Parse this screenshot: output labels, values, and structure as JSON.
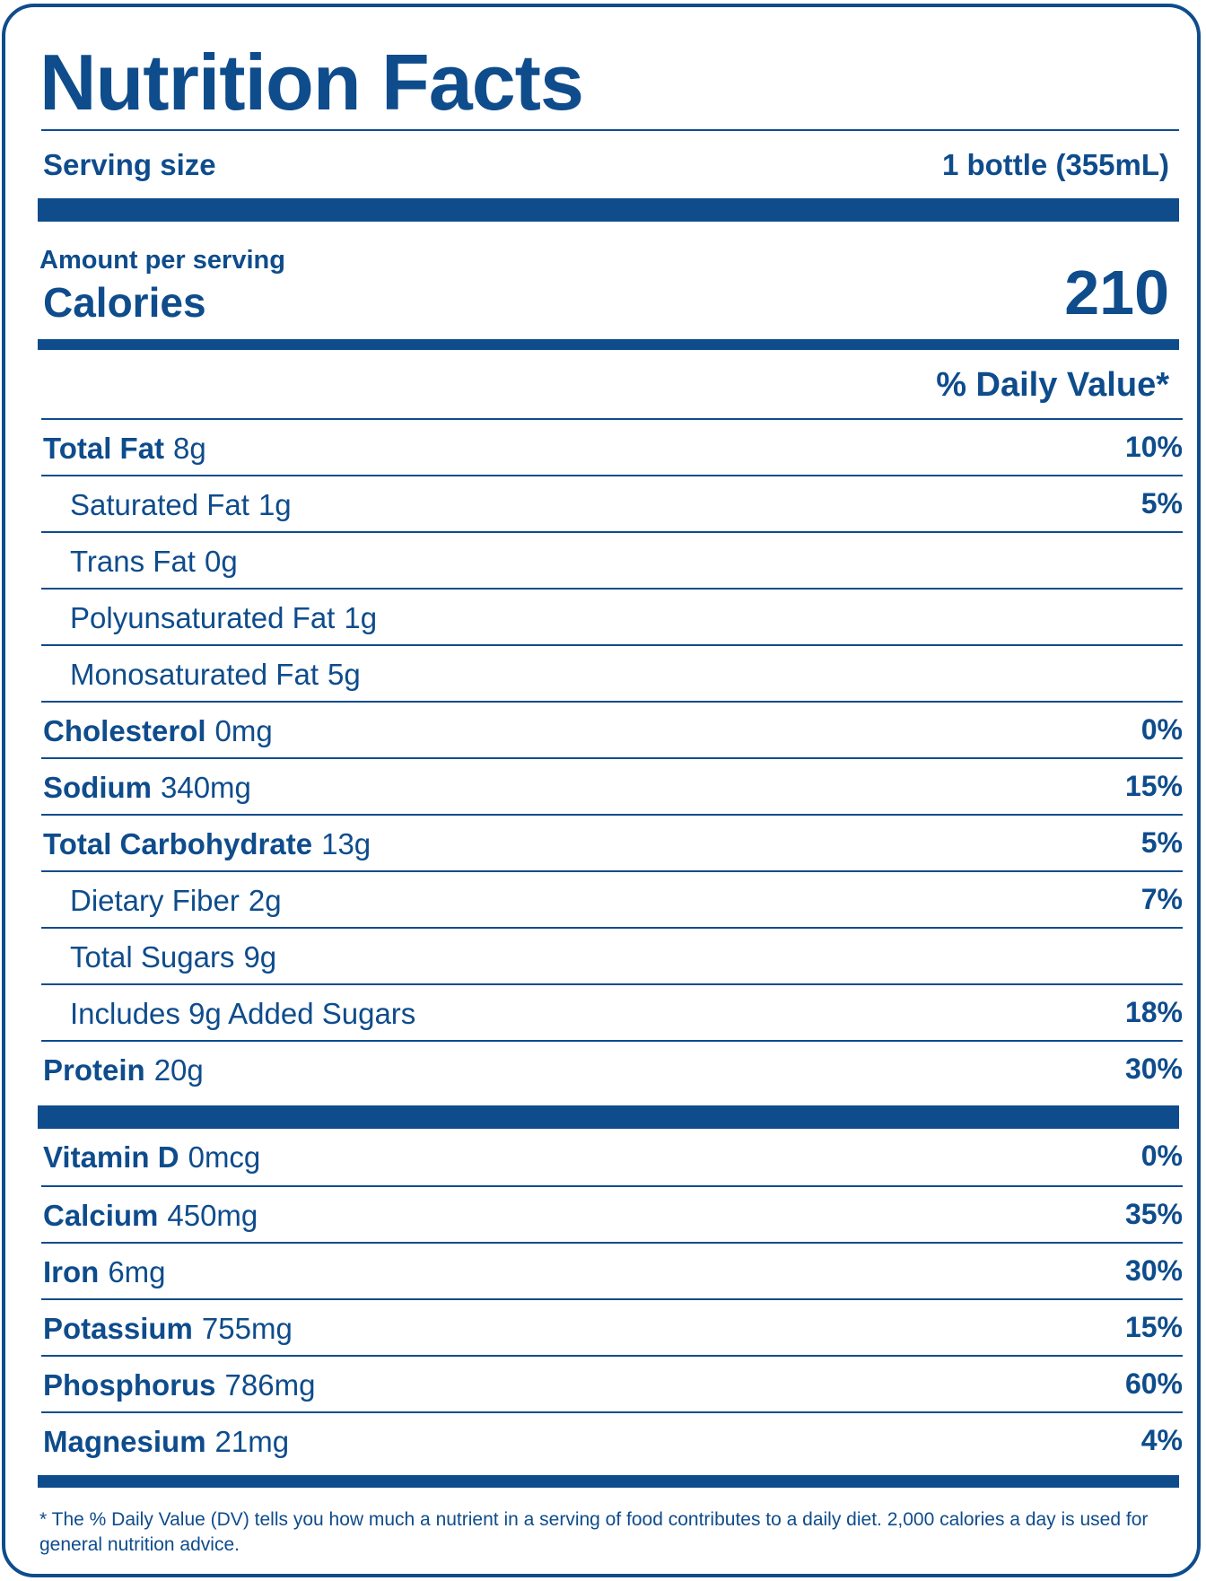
{
  "label": {
    "title": "Nutrition Facts",
    "serving_size_label": "Serving size",
    "serving_size_value": "1 bottle (355mL)",
    "amount_per_serving": "Amount per serving",
    "calories_label": "Calories",
    "calories_value": "210",
    "daily_value_header": "% Daily Value*",
    "nutrients": [
      {
        "name": "Total Fat",
        "amount": "8g",
        "dv": "10%",
        "level": "main"
      },
      {
        "name": "Saturated Fat",
        "amount": "1g",
        "dv": "5%",
        "level": "sub"
      },
      {
        "name": "Trans Fat",
        "amount": "0g",
        "dv": "",
        "level": "sub"
      },
      {
        "name": "Polyunsaturated Fat",
        "amount": "1g",
        "dv": "",
        "level": "sub"
      },
      {
        "name": "Monosaturated Fat",
        "amount": "5g",
        "dv": "",
        "level": "sub"
      },
      {
        "name": "Cholesterol",
        "amount": "0mg",
        "dv": "0%",
        "level": "main"
      },
      {
        "name": "Sodium",
        "amount": "340mg",
        "dv": "15%",
        "level": "main"
      },
      {
        "name": "Total Carbohydrate",
        "amount": "13g",
        "dv": "5%",
        "level": "main"
      },
      {
        "name": "Dietary Fiber",
        "amount": "2g",
        "dv": "7%",
        "level": "sub"
      },
      {
        "name": "Total Sugars",
        "amount": "9g",
        "dv": "",
        "level": "sub"
      },
      {
        "name": "Includes 9g Added Sugars",
        "amount": "",
        "dv": "18%",
        "level": "sub"
      },
      {
        "name": "Protein",
        "amount": "20g",
        "dv": "30%",
        "level": "main"
      }
    ],
    "vitamins": [
      {
        "name": "Vitamin D",
        "amount": "0mcg",
        "dv": "0%"
      },
      {
        "name": "Calcium",
        "amount": "450mg",
        "dv": "35%"
      },
      {
        "name": "Iron",
        "amount": "6mg",
        "dv": "30%"
      },
      {
        "name": "Potassium",
        "amount": "755mg",
        "dv": "15%"
      },
      {
        "name": "Phosphorus",
        "amount": "786mg",
        "dv": "60%"
      },
      {
        "name": "Magnesium",
        "amount": "21mg",
        "dv": "4%"
      }
    ],
    "footnote": "* The % Daily Value (DV) tells you how much a nutrient in a serving of food contributes to a daily diet. 2,000 calories a day is used for general nutrition advice."
  },
  "colors": {
    "ink": "#0e4c8c",
    "background": "#ffffff"
  }
}
